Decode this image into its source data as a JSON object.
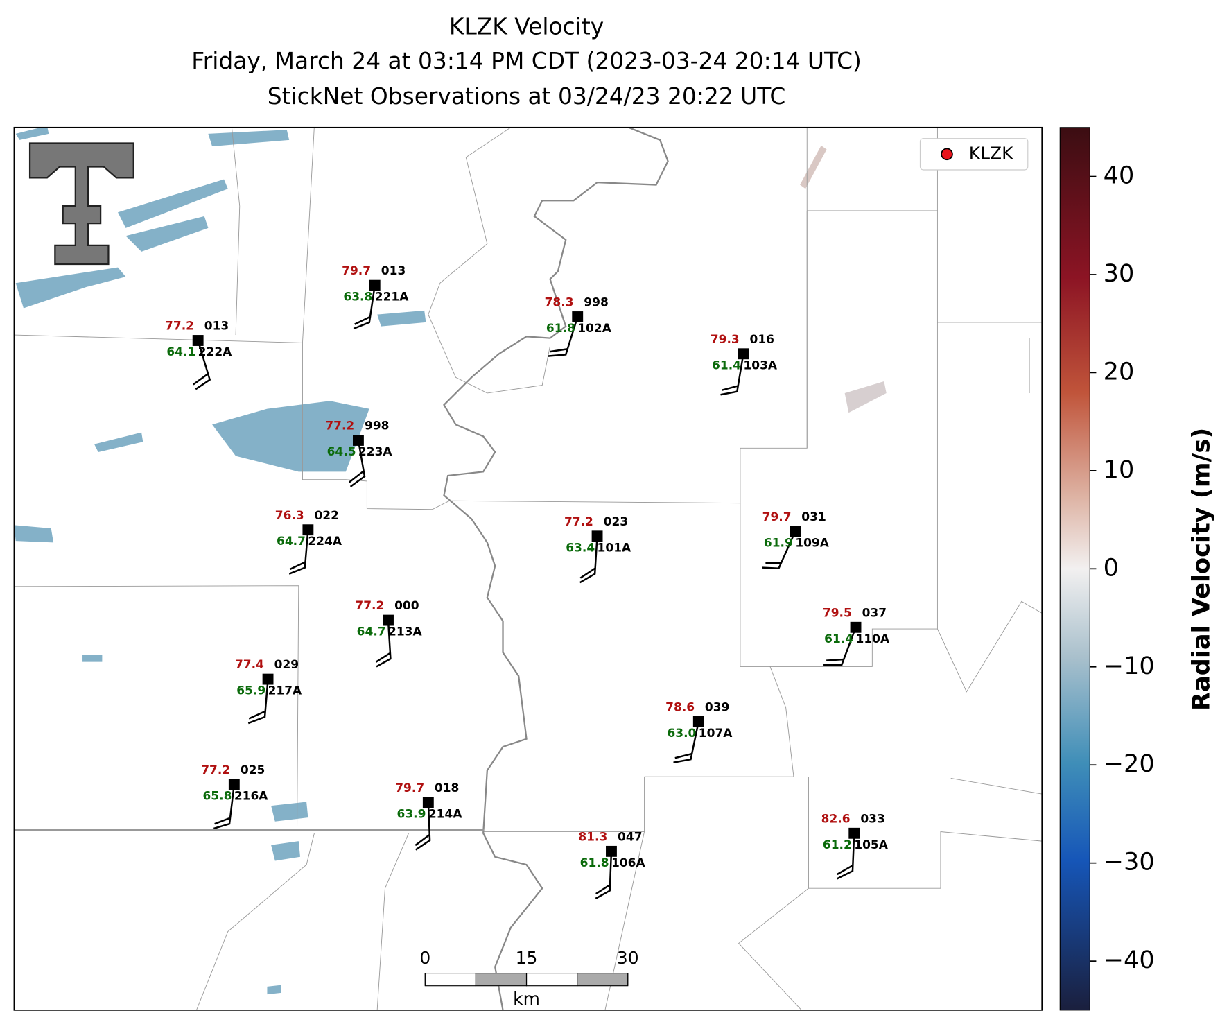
{
  "header": {
    "title": "KLZK Velocity",
    "subtitle": "Friday, March 24 at 03:14 PM CDT (2023-03-24 20:14 UTC)",
    "subtitle2": "StickNet Observations at 03/24/23 20:22 UTC"
  },
  "legend": {
    "label": "KLZK",
    "color": "#e8141c"
  },
  "colorbar": {
    "label": "Radial Velocity (m/s)",
    "lim": [
      -45,
      45
    ],
    "ticks": [
      40,
      30,
      20,
      10,
      0,
      {
        "value": -10,
        "label": "−10"
      },
      {
        "value": -20,
        "label": "−20"
      },
      {
        "value": -30,
        "label": "−30"
      },
      {
        "value": -40,
        "label": "−40"
      }
    ]
  },
  "scalebar": {
    "lim": [
      0,
      30
    ],
    "ticks": [
      0,
      15,
      30
    ],
    "unit": "km"
  },
  "stations": [
    {
      "id": "221A",
      "temperature": 79.7,
      "dewpoint": 63.8,
      "pressure": "013"
    },
    {
      "id": "222A",
      "temperature": 77.2,
      "dewpoint": 64.1,
      "pressure": "013"
    },
    {
      "id": "102A",
      "temperature": 78.3,
      "dewpoint": 61.8,
      "pressure": "998"
    },
    {
      "id": "103A",
      "temperature": 79.3,
      "dewpoint": 61.4,
      "pressure": "016"
    },
    {
      "id": "223A",
      "temperature": 77.2,
      "dewpoint": 64.5,
      "pressure": "998"
    },
    {
      "id": "224A",
      "temperature": 76.3,
      "dewpoint": 64.7,
      "pressure": "022"
    },
    {
      "id": "101A",
      "temperature": 77.2,
      "dewpoint": 63.4,
      "pressure": "023"
    },
    {
      "id": "109A",
      "temperature": 79.7,
      "dewpoint": 61.9,
      "pressure": "031"
    },
    {
      "id": "213A",
      "temperature": 77.2,
      "dewpoint": 64.7,
      "pressure": "000"
    },
    {
      "id": "110A",
      "temperature": 79.5,
      "dewpoint": 61.4,
      "pressure": "037"
    },
    {
      "id": "217A",
      "temperature": 77.4,
      "dewpoint": 65.9,
      "pressure": "029"
    },
    {
      "id": "107A",
      "temperature": 78.6,
      "dewpoint": {
        "value": 63,
        "label": "63.0"
      },
      "pressure": "039"
    },
    {
      "id": "216A",
      "temperature": 77.2,
      "dewpoint": 65.8,
      "pressure": "025"
    },
    {
      "id": "214A",
      "temperature": 79.7,
      "dewpoint": 63.9,
      "pressure": "018"
    },
    {
      "id": "106A",
      "temperature": 81.3,
      "dewpoint": 61.8,
      "pressure": "047"
    },
    {
      "id": "105A",
      "temperature": 82.6,
      "dewpoint": 61.2,
      "pressure": "033"
    }
  ]
}
